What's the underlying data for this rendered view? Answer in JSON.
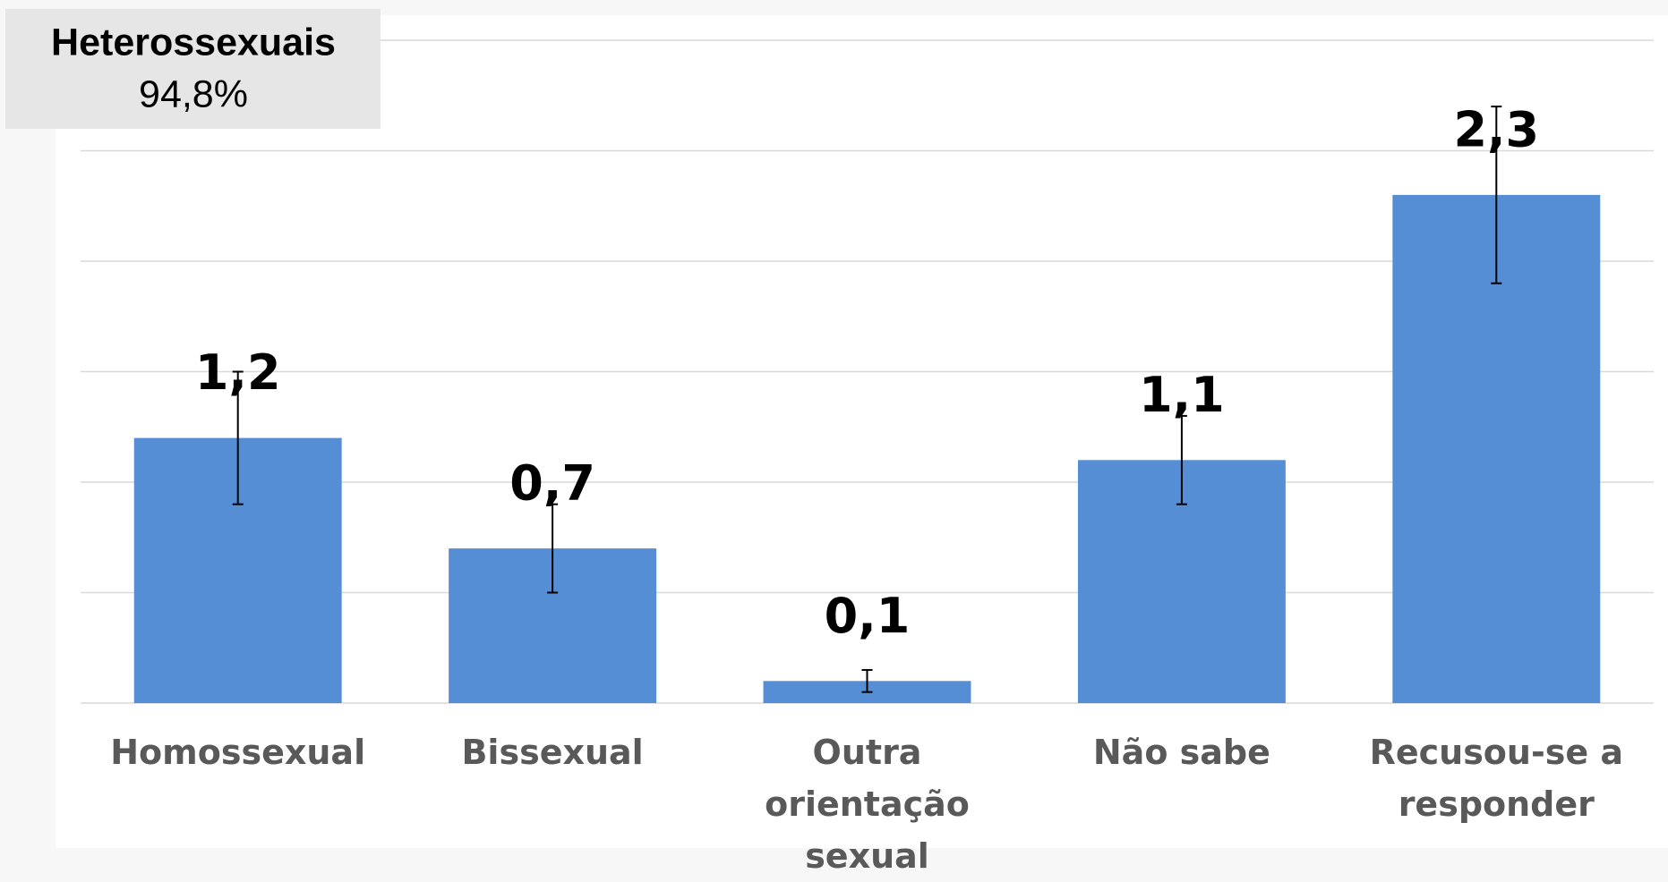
{
  "chart_data": {
    "type": "bar",
    "annotation": {
      "title": "Heterossexuais",
      "value": 94.8,
      "value_label": "94,8%"
    },
    "categories": [
      "Homossexual",
      "Bissexual",
      "Outra orientação sexual",
      "Não sabe",
      "Recusou-se a responder"
    ],
    "values": [
      1.2,
      0.7,
      0.1,
      1.1,
      2.3
    ],
    "value_labels": [
      "1,2",
      "0,7",
      "0,1",
      "1,1",
      "2,3"
    ],
    "errors": [
      0.3,
      0.2,
      0.05,
      0.2,
      0.4
    ],
    "color": "#558ed5",
    "ylim": [
      0,
      3
    ],
    "yticks": [
      0,
      0.5,
      1,
      1.5,
      2,
      2.5,
      3
    ],
    "grid": true
  }
}
